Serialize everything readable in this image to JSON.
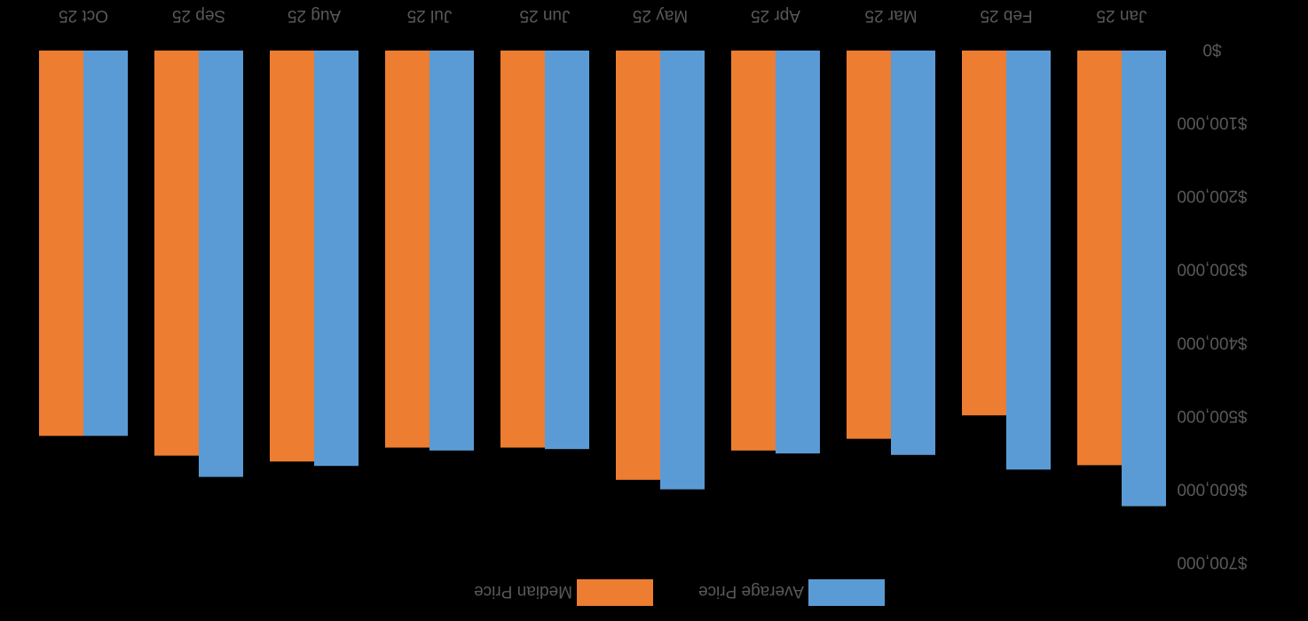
{
  "chart_data": {
    "type": "bar",
    "orientation": "rotated-180",
    "title": "",
    "xlabel": "",
    "ylabel": "",
    "categories": [
      "Jan 25",
      "Feb 25",
      "Mar 25",
      "Apr 25",
      "May 25",
      "Jun 25",
      "Jul 25",
      "Aug 25",
      "Sep 25",
      "Oct 25"
    ],
    "series": [
      {
        "name": "Average Price",
        "color": "#5B9BD5",
        "values": [
          622000,
          572000,
          552000,
          550000,
          599000,
          544000,
          546000,
          567000,
          582000,
          526000
        ]
      },
      {
        "name": "Median Price",
        "color": "#ED7D31",
        "values": [
          566000,
          498000,
          530000,
          546000,
          586000,
          542000,
          542000,
          561000,
          553000,
          526000
        ]
      }
    ],
    "y_ticks": [
      "$0",
      "$100,000",
      "$200,000",
      "$300,000",
      "$400,000",
      "$500,000",
      "$600,000",
      "$700,000"
    ],
    "ylim": [
      0,
      700000
    ],
    "grid": false,
    "legend_position": "bottom",
    "background": "#000000",
    "text_color": "#595959"
  }
}
